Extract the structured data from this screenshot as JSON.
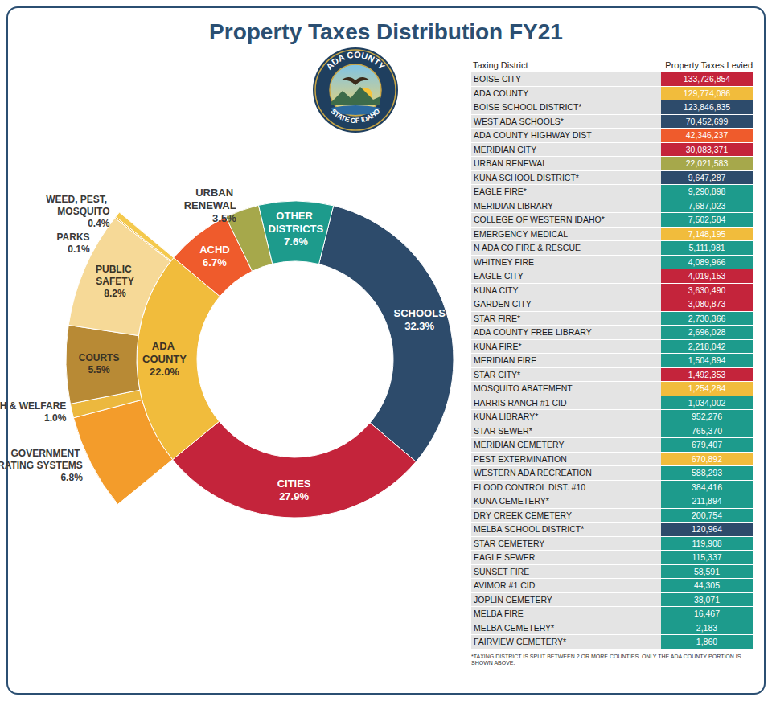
{
  "chart_data": {
    "type": "pie",
    "title": "Property Taxes Distribution FY21",
    "categories": [
      "SCHOOLS",
      "CITIES",
      "ADA COUNTY",
      "ACHD",
      "URBAN RENEWAL",
      "OTHER DISTRICTS"
    ],
    "values": [
      32.3,
      27.9,
      22.0,
      6.7,
      3.5,
      7.6
    ],
    "value_labels": [
      "32.3%",
      "27.9%",
      "22.0%",
      "6.7%",
      "3.5%",
      "7.6%"
    ],
    "colors": [
      "#2d4b6b",
      "#c4243b",
      "#f1bc3c",
      "#ef5b2c",
      "#a6a84b",
      "#1d9b8c"
    ],
    "data_labels": true,
    "breakdown": {
      "parent": "ADA COUNTY",
      "categories": [
        "GOVERNMENT OPERATING SYSTEMS",
        "HEALTH & WELFARE",
        "COURTS",
        "PUBLIC SAFETY",
        "PARKS",
        "WEED, PEST, MOSQUITO"
      ],
      "values": [
        6.8,
        1.0,
        5.5,
        8.2,
        0.1,
        0.4
      ],
      "value_labels": [
        "6.8%",
        "1.0%",
        "5.5%",
        "8.2%",
        "0.1%",
        "0.4%"
      ],
      "colors": [
        "#f39c2b",
        "#ecb83e",
        "#b88a35",
        "#f6d997",
        "#ecb73f",
        "#f4c94d"
      ]
    }
  },
  "seal": {
    "top": "ADA COUNTY",
    "bottom": "STATE OF IDAHO"
  },
  "table": {
    "header": [
      "Taxing District",
      "Property Taxes Levied"
    ],
    "rows": [
      {
        "district": "BOISE CITY",
        "levied": 133726854,
        "color": "#c4243b"
      },
      {
        "district": "ADA COUNTY",
        "levied": 129774086,
        "color": "#f1bc3c"
      },
      {
        "district": "BOISE SCHOOL DISTRICT*",
        "levied": 123846835,
        "color": "#2d4b6b"
      },
      {
        "district": "WEST ADA SCHOOLS*",
        "levied": 70452699,
        "color": "#2d4b6b"
      },
      {
        "district": "ADA COUNTY HIGHWAY DIST",
        "levied": 42346237,
        "color": "#ef5b2c"
      },
      {
        "district": "MERIDIAN CITY",
        "levied": 30083371,
        "color": "#c4243b"
      },
      {
        "district": "URBAN RENEWAL",
        "levied": 22021583,
        "color": "#a6a84b"
      },
      {
        "district": "KUNA SCHOOL DISTRICT*",
        "levied": 9647287,
        "color": "#2d4b6b"
      },
      {
        "district": "EAGLE FIRE*",
        "levied": 9290898,
        "color": "#1d9b8c"
      },
      {
        "district": "MERIDIAN LIBRARY",
        "levied": 7687023,
        "color": "#1d9b8c"
      },
      {
        "district": "COLLEGE OF WESTERN IDAHO*",
        "levied": 7502584,
        "color": "#1d9b8c"
      },
      {
        "district": "EMERGENCY MEDICAL",
        "levied": 7148195,
        "color": "#f1bc3c"
      },
      {
        "district": "N ADA CO FIRE & RESCUE",
        "levied": 5111981,
        "color": "#1d9b8c"
      },
      {
        "district": "WHITNEY FIRE",
        "levied": 4089966,
        "color": "#1d9b8c"
      },
      {
        "district": "EAGLE CITY",
        "levied": 4019153,
        "color": "#c4243b"
      },
      {
        "district": "KUNA CITY",
        "levied": 3630490,
        "color": "#c4243b"
      },
      {
        "district": "GARDEN CITY",
        "levied": 3080873,
        "color": "#c4243b"
      },
      {
        "district": "STAR FIRE*",
        "levied": 2730366,
        "color": "#1d9b8c"
      },
      {
        "district": "ADA COUNTY FREE LIBRARY",
        "levied": 2696028,
        "color": "#1d9b8c"
      },
      {
        "district": "KUNA FIRE*",
        "levied": 2218042,
        "color": "#1d9b8c"
      },
      {
        "district": "MERIDIAN FIRE",
        "levied": 1504894,
        "color": "#1d9b8c"
      },
      {
        "district": "STAR CITY*",
        "levied": 1492353,
        "color": "#c4243b"
      },
      {
        "district": "MOSQUITO ABATEMENT",
        "levied": 1254284,
        "color": "#f1bc3c"
      },
      {
        "district": "HARRIS RANCH #1 CID",
        "levied": 1034002,
        "color": "#1d9b8c"
      },
      {
        "district": "KUNA LIBRARY*",
        "levied": 952276,
        "color": "#1d9b8c"
      },
      {
        "district": "STAR SEWER*",
        "levied": 765370,
        "color": "#1d9b8c"
      },
      {
        "district": "MERIDIAN CEMETERY",
        "levied": 679407,
        "color": "#1d9b8c"
      },
      {
        "district": "PEST EXTERMINATION",
        "levied": 670892,
        "color": "#f1bc3c"
      },
      {
        "district": "WESTERN ADA RECREATION",
        "levied": 588293,
        "color": "#1d9b8c"
      },
      {
        "district": "FLOOD CONTROL DIST. #10",
        "levied": 384416,
        "color": "#1d9b8c"
      },
      {
        "district": "KUNA CEMETERY*",
        "levied": 211894,
        "color": "#1d9b8c"
      },
      {
        "district": "DRY CREEK CEMETERY",
        "levied": 200754,
        "color": "#1d9b8c"
      },
      {
        "district": "MELBA SCHOOL DISTRICT*",
        "levied": 120964,
        "color": "#2d4b6b"
      },
      {
        "district": "STAR CEMETERY",
        "levied": 119908,
        "color": "#1d9b8c"
      },
      {
        "district": "EAGLE SEWER",
        "levied": 115337,
        "color": "#1d9b8c"
      },
      {
        "district": "SUNSET FIRE",
        "levied": 58591,
        "color": "#1d9b8c"
      },
      {
        "district": "AVIMOR #1 CID",
        "levied": 44305,
        "color": "#1d9b8c"
      },
      {
        "district": "JOPLIN CEMETERY",
        "levied": 38071,
        "color": "#1d9b8c"
      },
      {
        "district": "MELBA FIRE",
        "levied": 16467,
        "color": "#1d9b8c"
      },
      {
        "district": "MELBA CEMETERY*",
        "levied": 2183,
        "color": "#1d9b8c"
      },
      {
        "district": "FAIRVIEW CEMETERY*",
        "levied": 1860,
        "color": "#1d9b8c"
      }
    ],
    "footnote": "*TAXING DISTRICT IS SPLIT BETWEEN 2 OR MORE COUNTIES. ONLY THE ADA COUNTY PORTION IS SHOWN ABOVE."
  }
}
